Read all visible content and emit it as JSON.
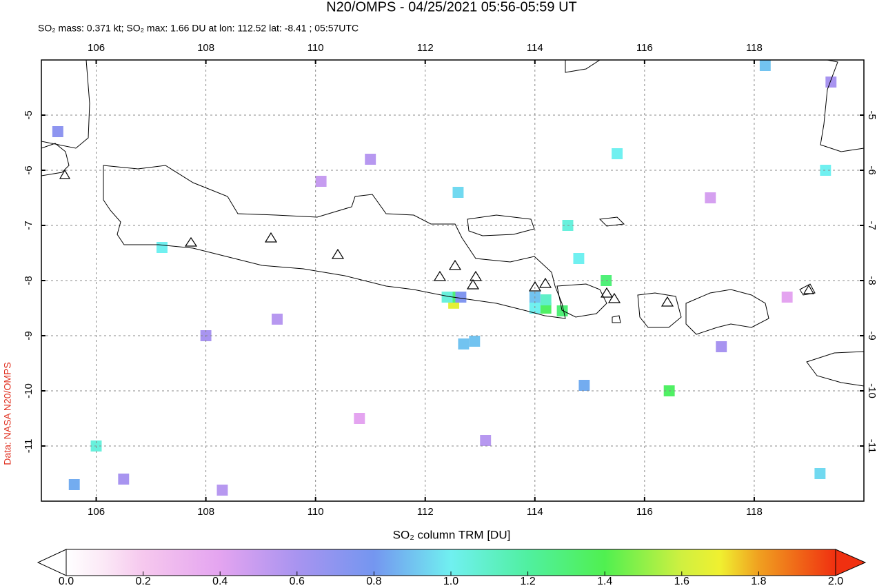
{
  "header": {
    "title": "N20/OMPS - 04/25/2021 05:56-05:59 UT",
    "subtitle": "SO₂ mass: 0.371 kt; SO₂ max: 1.66 DU at lon: 112.52 lat: -8.41 ; 05:57UTC"
  },
  "credit": "Data: NASA N20/OMPS",
  "map": {
    "xlim": [
      105,
      120
    ],
    "ylim": [
      -12,
      -4
    ],
    "xticks": [
      106,
      108,
      110,
      112,
      114,
      116,
      118
    ],
    "yticks": [
      -5,
      -6,
      -7,
      -8,
      -9,
      -10,
      -11
    ],
    "pixels": [
      {
        "lon": 112.52,
        "lat": -8.41,
        "value": 1.66
      },
      {
        "lon": 112.52,
        "lat": -8.3,
        "value": 1.3
      },
      {
        "lon": 112.4,
        "lat": -8.3,
        "value": 1.05
      },
      {
        "lon": 112.65,
        "lat": -8.3,
        "value": 0.75
      },
      {
        "lon": 114.2,
        "lat": -8.5,
        "value": 1.35
      },
      {
        "lon": 114.0,
        "lat": -8.5,
        "value": 1.0
      },
      {
        "lon": 114.2,
        "lat": -8.35,
        "value": 1.1
      },
      {
        "lon": 114.0,
        "lat": -8.3,
        "value": 0.9
      },
      {
        "lon": 114.5,
        "lat": -8.55,
        "value": 1.3
      },
      {
        "lon": 115.3,
        "lat": -8.0,
        "value": 1.3
      },
      {
        "lon": 116.45,
        "lat": -10.0,
        "value": 1.35
      },
      {
        "lon": 106.0,
        "lat": -11.0,
        "value": 1.05
      },
      {
        "lon": 115.5,
        "lat": -5.7,
        "value": 1.0
      },
      {
        "lon": 119.3,
        "lat": -6.0,
        "value": 1.0
      },
      {
        "lon": 114.6,
        "lat": -7.0,
        "value": 1.05
      },
      {
        "lon": 114.8,
        "lat": -7.6,
        "value": 1.0
      },
      {
        "lon": 112.6,
        "lat": -6.4,
        "value": 0.95
      },
      {
        "lon": 112.9,
        "lat": -9.1,
        "value": 0.9
      },
      {
        "lon": 112.7,
        "lat": -9.15,
        "value": 0.9
      },
      {
        "lon": 107.2,
        "lat": -7.4,
        "value": 1.0
      },
      {
        "lon": 119.2,
        "lat": -11.5,
        "value": 0.95
      },
      {
        "lon": 105.6,
        "lat": -11.7,
        "value": 0.85
      },
      {
        "lon": 118.2,
        "lat": -4.1,
        "value": 0.9
      },
      {
        "lon": 114.9,
        "lat": -9.9,
        "value": 0.85
      },
      {
        "lon": 108.0,
        "lat": -9.0,
        "value": 0.6
      },
      {
        "lon": 109.3,
        "lat": -8.7,
        "value": 0.55
      },
      {
        "lon": 111.0,
        "lat": -5.8,
        "value": 0.55
      },
      {
        "lon": 110.1,
        "lat": -6.2,
        "value": 0.5
      },
      {
        "lon": 117.4,
        "lat": -9.2,
        "value": 0.6
      },
      {
        "lon": 113.1,
        "lat": -10.9,
        "value": 0.55
      },
      {
        "lon": 106.5,
        "lat": -11.6,
        "value": 0.6
      },
      {
        "lon": 108.3,
        "lat": -11.8,
        "value": 0.55
      },
      {
        "lon": 117.2,
        "lat": -6.5,
        "value": 0.45
      },
      {
        "lon": 110.8,
        "lat": -10.5,
        "value": 0.4
      },
      {
        "lon": 118.6,
        "lat": -8.3,
        "value": 0.4
      },
      {
        "lon": 105.3,
        "lat": -5.3,
        "value": 0.7
      },
      {
        "lon": 119.4,
        "lat": -4.4,
        "value": 0.6
      }
    ]
  },
  "colorbar": {
    "label": "SO₂ column TRM [DU]",
    "lim": [
      0,
      2
    ],
    "ticks": [
      {
        "value": 0,
        "label": "0.0"
      },
      {
        "value": 0.2,
        "label": "0.2"
      },
      {
        "value": 0.4,
        "label": "0.4"
      },
      {
        "value": 0.6,
        "label": "0.6"
      },
      {
        "value": 0.8,
        "label": "0.8"
      },
      {
        "value": 1,
        "label": "1.0"
      },
      {
        "value": 1.2,
        "label": "1.2"
      },
      {
        "value": 1.4,
        "label": "1.4"
      },
      {
        "value": 1.6,
        "label": "1.6"
      },
      {
        "value": 1.8,
        "label": "1.8"
      },
      {
        "value": 2,
        "label": "2.0"
      }
    ]
  }
}
